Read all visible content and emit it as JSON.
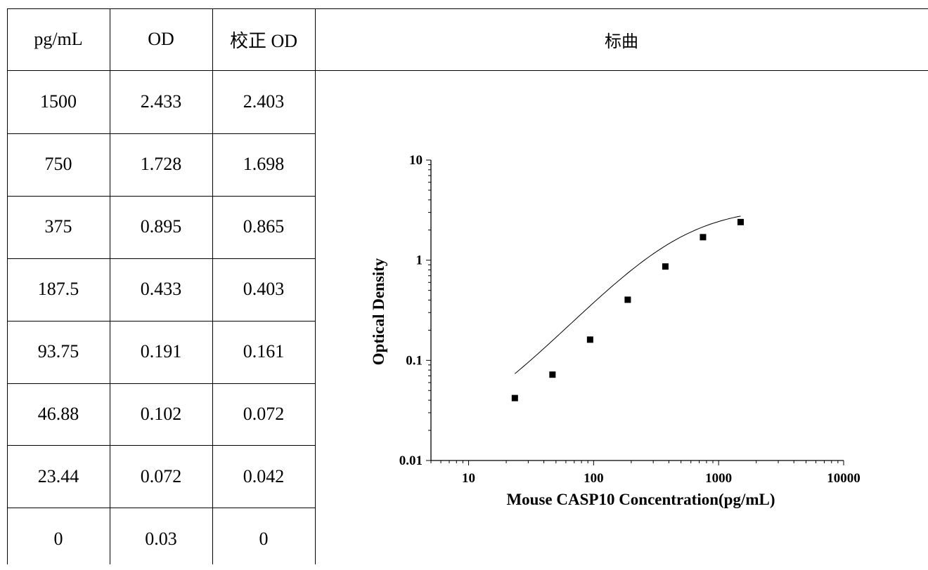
{
  "table": {
    "headers": [
      "pg/mL",
      "OD",
      "校正 OD"
    ],
    "rows": [
      [
        "1500",
        "2.433",
        "2.403"
      ],
      [
        "750",
        "1.728",
        "1.698"
      ],
      [
        "375",
        "0.895",
        "0.865"
      ],
      [
        "187.5",
        "0.433",
        "0.403"
      ],
      [
        "93.75",
        "0.191",
        "0.161"
      ],
      [
        "46.88",
        "0.102",
        "0.072"
      ],
      [
        "23.44",
        "0.072",
        "0.042"
      ],
      [
        "0",
        "0.03",
        "0"
      ]
    ]
  },
  "chart_header": "标曲",
  "chart_data": {
    "type": "scatter",
    "xlabel": "Mouse CASP10 Concentration(pg/mL)",
    "ylabel": "Optical Density",
    "x_scale": "log",
    "y_scale": "log",
    "xlim": [
      5,
      10000
    ],
    "ylim": [
      0.01,
      10
    ],
    "x_ticks": [
      "10",
      "100",
      "1000",
      "10000"
    ],
    "y_ticks": [
      "0.01",
      "0.1",
      "1",
      "10"
    ],
    "points": [
      {
        "x": 23.44,
        "y": 0.042
      },
      {
        "x": 46.88,
        "y": 0.072
      },
      {
        "x": 93.75,
        "y": 0.161
      },
      {
        "x": 187.5,
        "y": 0.403
      },
      {
        "x": 375,
        "y": 0.865
      },
      {
        "x": 750,
        "y": 1.698
      },
      {
        "x": 1500,
        "y": 2.403
      }
    ],
    "fit_line": true,
    "legend": "none",
    "grid": false,
    "marker_color": "#000000"
  }
}
